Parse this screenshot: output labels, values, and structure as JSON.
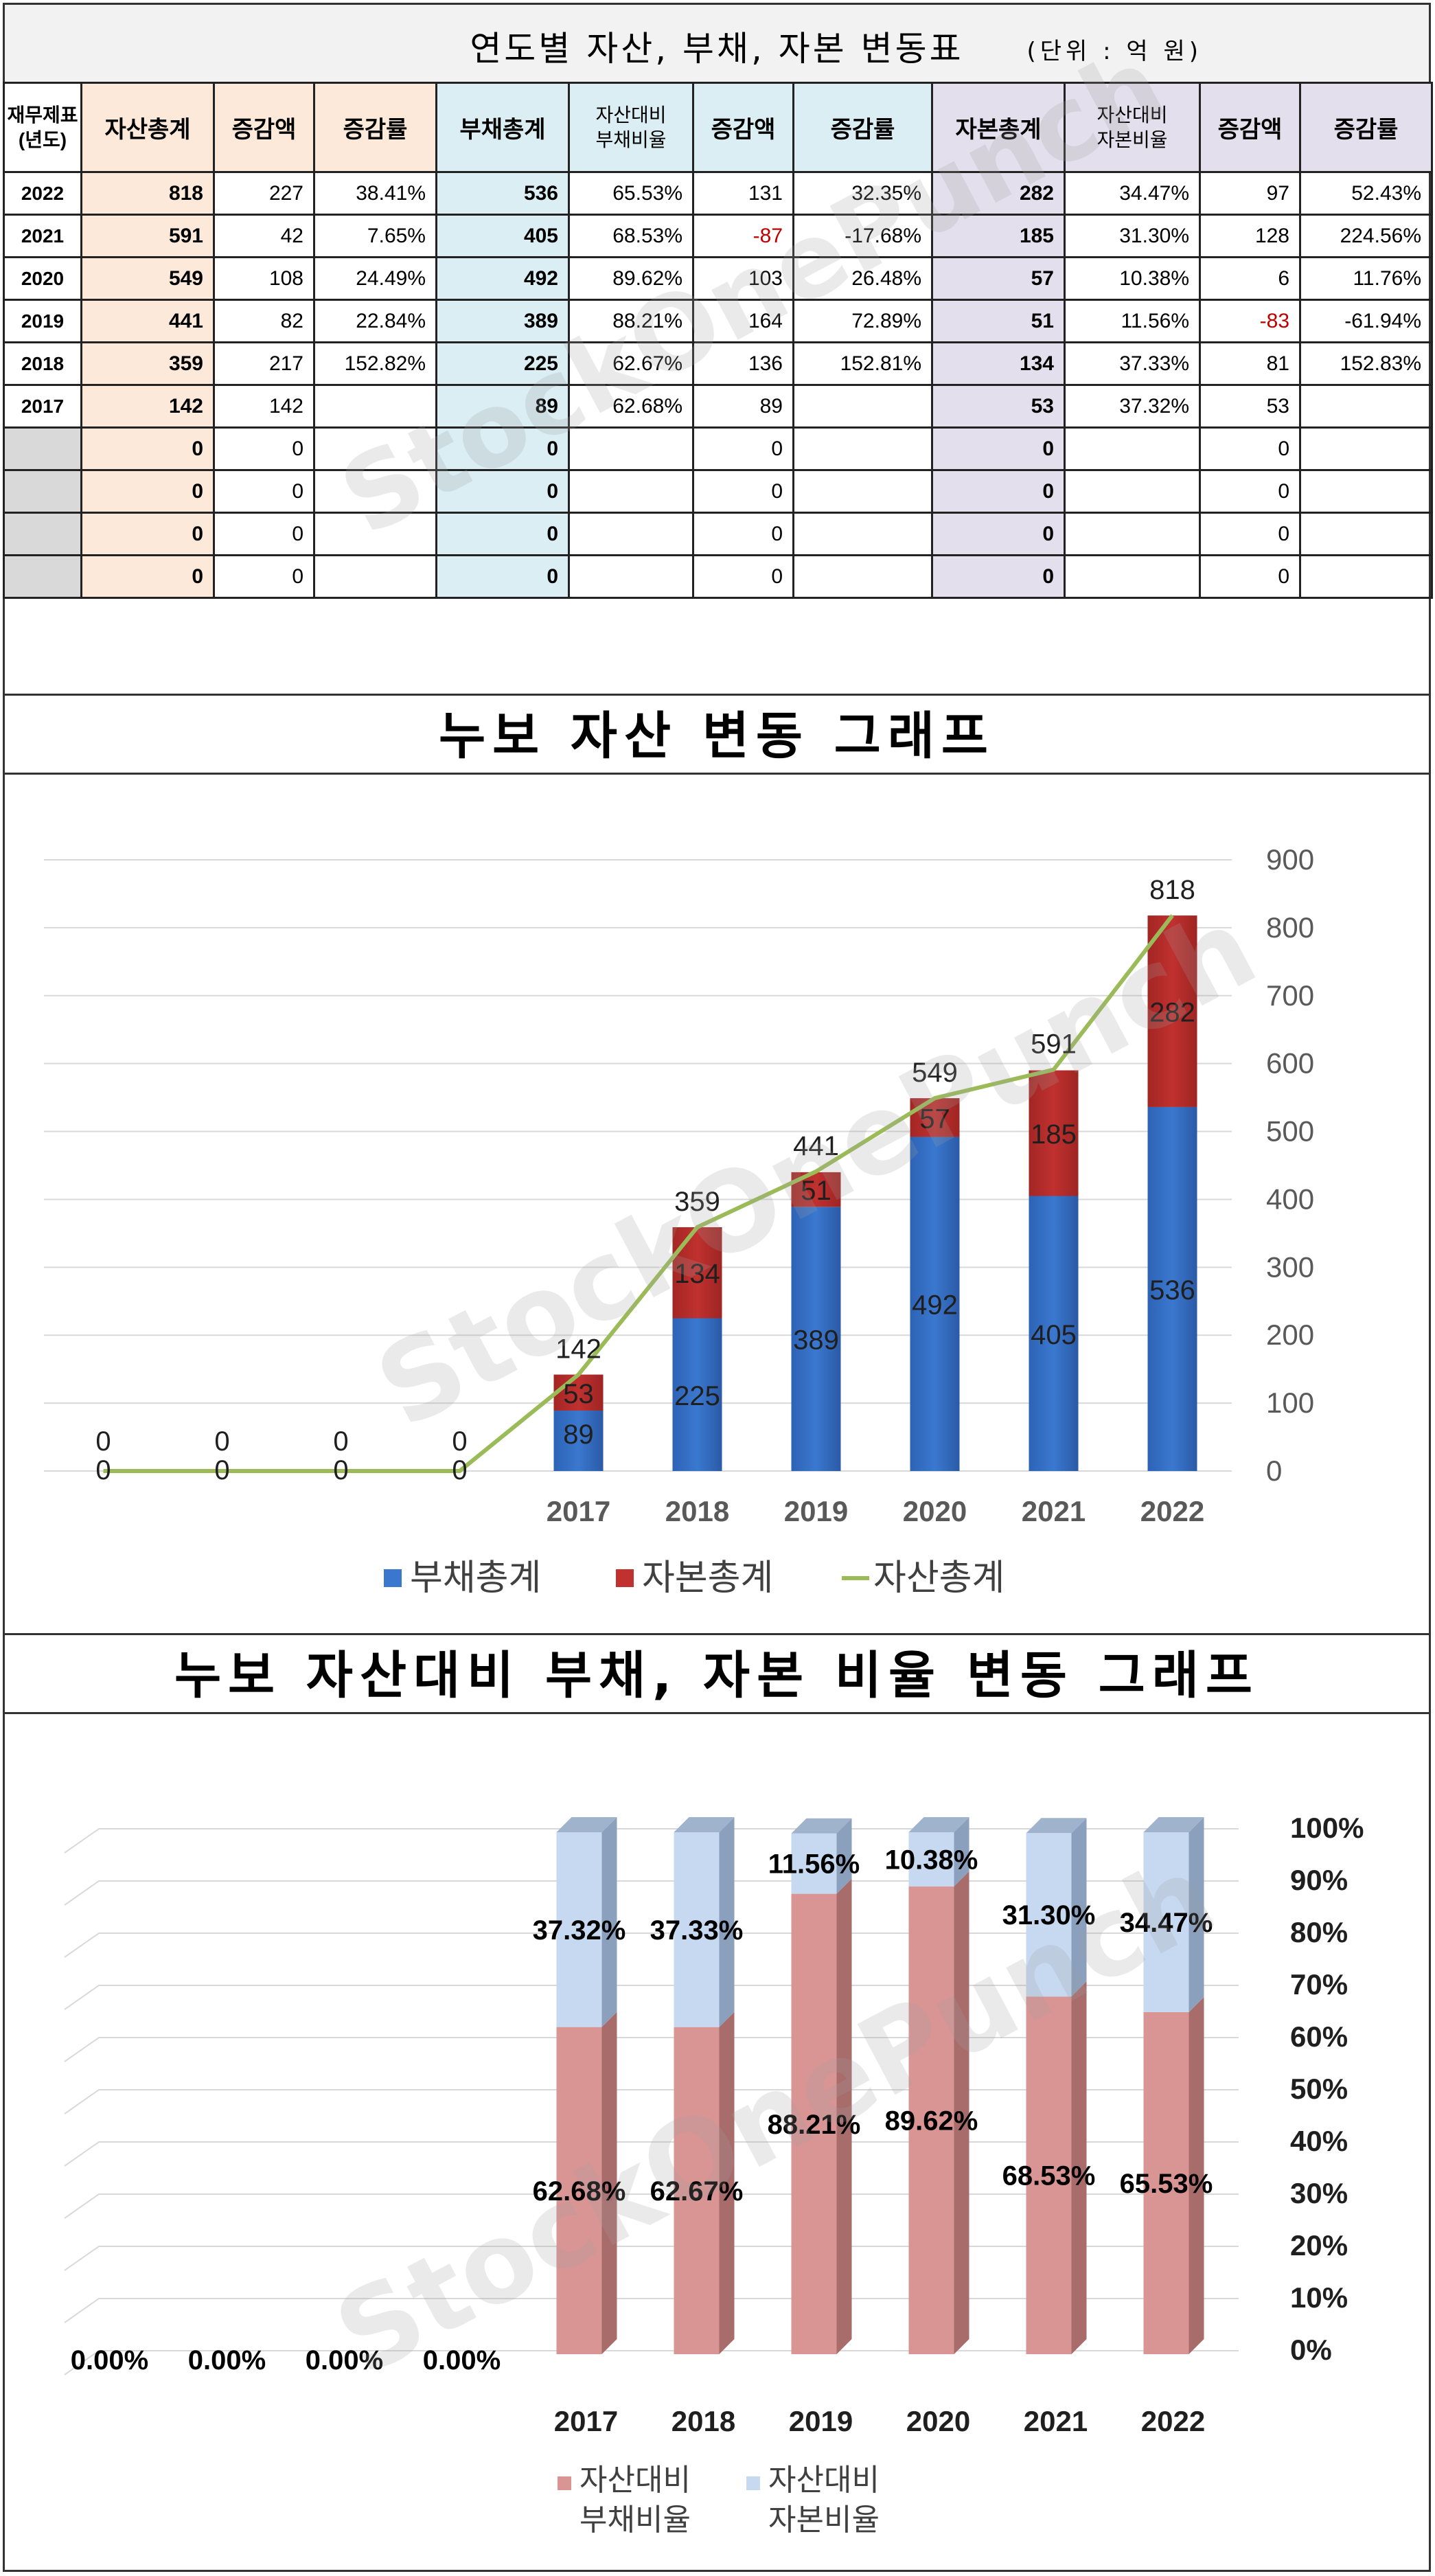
{
  "table": {
    "title": "연도별 자산, 부채, 자본 변동표",
    "unit": "(단위 : 억 원)",
    "headers": [
      "재무제표\n(년도)",
      "자산총계",
      "증감액",
      "증감률",
      "부채총계",
      "자산대비\n부채비율",
      "증감액",
      "증감률",
      "자본총계",
      "자산대비\n자본비율",
      "증감액",
      "증감률"
    ],
    "rows": [
      {
        "year": "2022",
        "asset": "818",
        "asset_chg": "227",
        "asset_rate": "38.41%",
        "debt": "536",
        "debt_ratio": "65.53%",
        "debt_chg": "131",
        "debt_rate": "32.35%",
        "equity": "282",
        "equity_ratio": "34.47%",
        "equity_chg": "97",
        "equity_rate": "52.43%"
      },
      {
        "year": "2021",
        "asset": "591",
        "asset_chg": "42",
        "asset_rate": "7.65%",
        "debt": "405",
        "debt_ratio": "68.53%",
        "debt_chg": "-87",
        "debt_rate": "-17.68%",
        "equity": "185",
        "equity_ratio": "31.30%",
        "equity_chg": "128",
        "equity_rate": "224.56%"
      },
      {
        "year": "2020",
        "asset": "549",
        "asset_chg": "108",
        "asset_rate": "24.49%",
        "debt": "492",
        "debt_ratio": "89.62%",
        "debt_chg": "103",
        "debt_rate": "26.48%",
        "equity": "57",
        "equity_ratio": "10.38%",
        "equity_chg": "6",
        "equity_rate": "11.76%"
      },
      {
        "year": "2019",
        "asset": "441",
        "asset_chg": "82",
        "asset_rate": "22.84%",
        "debt": "389",
        "debt_ratio": "88.21%",
        "debt_chg": "164",
        "debt_rate": "72.89%",
        "equity": "51",
        "equity_ratio": "11.56%",
        "equity_chg": "-83",
        "equity_rate": "-61.94%"
      },
      {
        "year": "2018",
        "asset": "359",
        "asset_chg": "217",
        "asset_rate": "152.82%",
        "debt": "225",
        "debt_ratio": "62.67%",
        "debt_chg": "136",
        "debt_rate": "152.81%",
        "equity": "134",
        "equity_ratio": "37.33%",
        "equity_chg": "81",
        "equity_rate": "152.83%"
      },
      {
        "year": "2017",
        "asset": "142",
        "asset_chg": "142",
        "asset_rate": "",
        "debt": "89",
        "debt_ratio": "62.68%",
        "debt_chg": "89",
        "debt_rate": "",
        "equity": "53",
        "equity_ratio": "37.32%",
        "equity_chg": "53",
        "equity_rate": ""
      },
      {
        "year": "",
        "asset": "0",
        "asset_chg": "0",
        "asset_rate": "",
        "debt": "0",
        "debt_ratio": "",
        "debt_chg": "0",
        "debt_rate": "",
        "equity": "0",
        "equity_ratio": "",
        "equity_chg": "0",
        "equity_rate": ""
      },
      {
        "year": "",
        "asset": "0",
        "asset_chg": "0",
        "asset_rate": "",
        "debt": "0",
        "debt_ratio": "",
        "debt_chg": "0",
        "debt_rate": "",
        "equity": "0",
        "equity_ratio": "",
        "equity_chg": "0",
        "equity_rate": ""
      },
      {
        "year": "",
        "asset": "0",
        "asset_chg": "0",
        "asset_rate": "",
        "debt": "0",
        "debt_ratio": "",
        "debt_chg": "0",
        "debt_rate": "",
        "equity": "0",
        "equity_ratio": "",
        "equity_chg": "0",
        "equity_rate": ""
      },
      {
        "year": "",
        "asset": "0",
        "asset_chg": "0",
        "asset_rate": "",
        "debt": "0",
        "debt_ratio": "",
        "debt_chg": "0",
        "debt_rate": "",
        "equity": "0",
        "equity_ratio": "",
        "equity_chg": "0",
        "equity_rate": ""
      }
    ]
  },
  "watermark": "StockOnePunch",
  "colors": {
    "debt": "#3a78cf",
    "equity": "#c0312f",
    "asset_line": "#9bbb59",
    "debt_ratio": "#d99594",
    "equity_ratio": "#c6d9f0",
    "asset_bg": "#fde9d9",
    "debt_bg": "#daeef3",
    "equity_bg": "#e4dfec",
    "negative": "#c00000"
  },
  "chart_data": [
    {
      "type": "bar",
      "stacked": true,
      "title": "누보 자산 변동 그래프",
      "categories": [
        "",
        "",
        "",
        "",
        "2017",
        "2018",
        "2019",
        "2020",
        "2021",
        "2022"
      ],
      "series": [
        {
          "name": "부채총계",
          "kind": "bar",
          "values": [
            0,
            0,
            0,
            0,
            89,
            225,
            389,
            492,
            405,
            536
          ]
        },
        {
          "name": "자본총계",
          "kind": "bar",
          "values": [
            0,
            0,
            0,
            0,
            53,
            134,
            51,
            57,
            185,
            282
          ]
        },
        {
          "name": "자산총계",
          "kind": "line",
          "values": [
            0,
            0,
            0,
            0,
            142,
            359,
            441,
            549,
            591,
            818
          ]
        }
      ],
      "ylim": [
        0,
        900
      ],
      "yticks": [
        "0",
        "100",
        "200",
        "300",
        "400",
        "500",
        "600",
        "700",
        "800",
        "900"
      ],
      "y_axis_side": "right",
      "grid": true,
      "legend": "bottom"
    },
    {
      "type": "bar",
      "stacked": true,
      "title": "누보 자산대비 부채, 자본 비율 변동 그래프",
      "categories": [
        "",
        "",
        "",
        "",
        "2017",
        "2018",
        "2019",
        "2020",
        "2021",
        "2022"
      ],
      "series": [
        {
          "name": "자산대비\n부채비율",
          "values": [
            0,
            0,
            0,
            0,
            62.68,
            62.67,
            88.21,
            89.62,
            68.53,
            65.53
          ],
          "labels": [
            "0.00%",
            "0.00%",
            "0.00%",
            "0.00%",
            "62.68%",
            "62.67%",
            "88.21%",
            "89.62%",
            "68.53%",
            "65.53%"
          ]
        },
        {
          "name": "자산대비\n자본비율",
          "values": [
            0,
            0,
            0,
            0,
            37.32,
            37.33,
            11.56,
            10.38,
            31.3,
            34.47
          ],
          "labels": [
            "",
            "",
            "",
            "",
            "37.32%",
            "37.33%",
            "11.56%",
            "10.38%",
            "31.30%",
            "34.47%"
          ]
        }
      ],
      "ylim": [
        0,
        100
      ],
      "yticks": [
        "0%",
        "10%",
        "20%",
        "30%",
        "40%",
        "50%",
        "60%",
        "70%",
        "80%",
        "90%",
        "100%"
      ],
      "y_axis_side": "right",
      "grid": true,
      "legend": "bottom"
    }
  ]
}
